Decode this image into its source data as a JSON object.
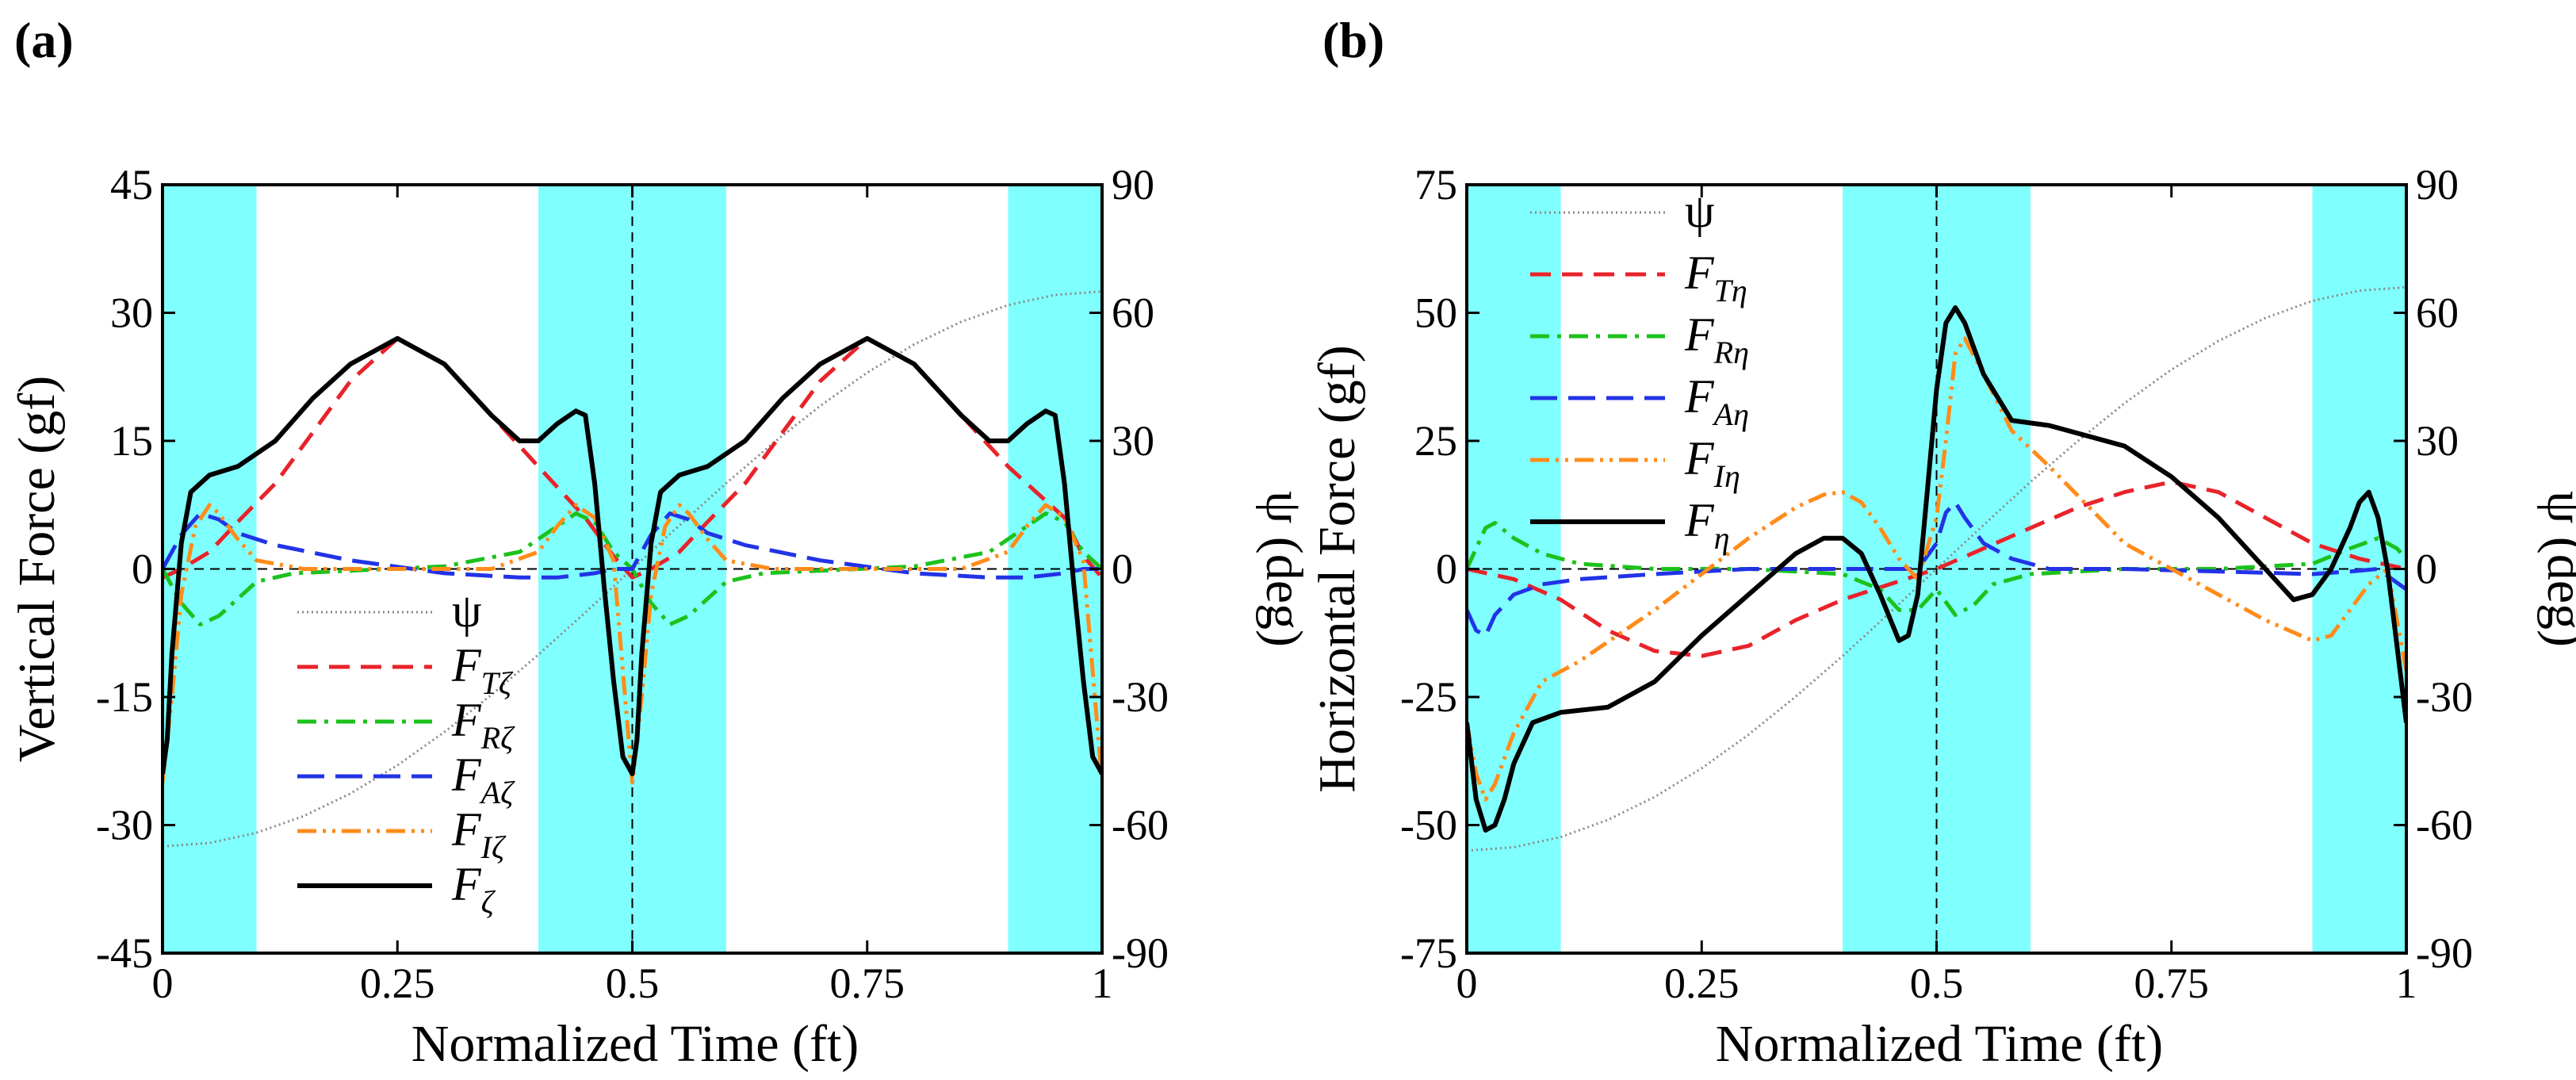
{
  "figure": {
    "panels": [
      "(a)",
      "(b)"
    ]
  },
  "chart_data": [
    {
      "type": "line",
      "panel": "(a)",
      "xlabel": "Normalized Time (ft)",
      "ylabel": "Vertical Force (gf)",
      "y2label": "ψ (deg)",
      "xlim": [
        0,
        1
      ],
      "ylim": [
        -45,
        45
      ],
      "y2lim": [
        -90,
        90
      ],
      "xticks": [
        0,
        0.25,
        0.5,
        0.75,
        1
      ],
      "xtick_labels": [
        "0",
        "0.25",
        "0.5",
        "0.75",
        "1"
      ],
      "yticks": [
        -45,
        -30,
        -15,
        0,
        15,
        30,
        45
      ],
      "ytick_labels": [
        "-45",
        "-30",
        "-15",
        "0",
        "15",
        "30",
        "45"
      ],
      "y2ticks": [
        -90,
        -60,
        -30,
        0,
        30,
        60,
        90
      ],
      "y2tick_labels": [
        "-90",
        "-60",
        "-30",
        "0",
        "30",
        "60",
        "90"
      ],
      "shaded_x_ranges": [
        [
          0,
          0.1
        ],
        [
          0.4,
          0.6
        ],
        [
          0.9,
          1.0
        ]
      ],
      "shade_color": "#80FFFF",
      "legend_position": "lower-center",
      "legend_items": [
        {
          "sym": "ψ",
          "sub": ""
        },
        {
          "sym": "F",
          "sub": "Tζ"
        },
        {
          "sym": "F",
          "sub": "Rζ"
        },
        {
          "sym": "F",
          "sub": "Aζ"
        },
        {
          "sym": "F",
          "sub": "Iζ"
        },
        {
          "sym": "F",
          "sub": "ζ"
        }
      ],
      "series": [
        {
          "name": "ψ",
          "axis": "right",
          "color": "#888888",
          "dash": "2,4",
          "width": 3,
          "x": [
            0,
            0.05,
            0.1,
            0.15,
            0.2,
            0.25,
            0.3,
            0.35,
            0.4,
            0.45,
            0.5,
            0.55,
            0.6,
            0.65,
            0.7,
            0.75,
            0.8,
            0.85,
            0.9,
            0.95,
            1
          ],
          "y": [
            -65,
            -64.2,
            -61.8,
            -57.9,
            -52.6,
            -46,
            -38.2,
            -29.5,
            -20.1,
            -10.2,
            0,
            10.2,
            20.1,
            29.5,
            38.2,
            46,
            52.6,
            57.9,
            61.8,
            64.2,
            65
          ]
        },
        {
          "name": "F_Tζ",
          "axis": "left",
          "color": "#E8232A",
          "dash": "26,14",
          "width": 5,
          "x": [
            0,
            0.02,
            0.05,
            0.08,
            0.12,
            0.16,
            0.2,
            0.25,
            0.3,
            0.35,
            0.4,
            0.45,
            0.48,
            0.5,
            0.52,
            0.55,
            0.58,
            0.62,
            0.66,
            0.7,
            0.75,
            0.8,
            0.85,
            0.9,
            0.93,
            0.96,
            0.98,
            1
          ],
          "y": [
            -1,
            0,
            2,
            5.5,
            10,
            16,
            22,
            27,
            24,
            18,
            12,
            6,
            1.5,
            -1,
            0,
            2,
            5.5,
            10,
            16,
            22,
            27,
            24,
            18,
            12,
            9,
            6,
            1.5,
            -1
          ]
        },
        {
          "name": "F_Rζ",
          "axis": "left",
          "color": "#1CC21C",
          "dash": "24,10,5,10",
          "width": 5,
          "x": [
            0,
            0.02,
            0.04,
            0.06,
            0.08,
            0.1,
            0.14,
            0.2,
            0.3,
            0.38,
            0.42,
            0.44,
            0.46,
            0.48,
            0.5,
            0.52,
            0.54,
            0.56,
            0.58,
            0.6,
            0.64,
            0.7,
            0.8,
            0.88,
            0.92,
            0.94,
            0.96,
            0.98,
            1
          ],
          "y": [
            0,
            -4,
            -6.5,
            -5.5,
            -3.5,
            -1.5,
            -0.5,
            -0.2,
            0.3,
            2,
            5,
            6.5,
            5.5,
            2,
            0,
            -4,
            -6.5,
            -5.5,
            -3.5,
            -1.5,
            -0.5,
            -0.2,
            0.3,
            2,
            5,
            6.5,
            5.5,
            2,
            0
          ]
        },
        {
          "name": "F_Aζ",
          "axis": "left",
          "color": "#2233E6",
          "dash": "34,14",
          "width": 5,
          "x": [
            0,
            0.02,
            0.04,
            0.06,
            0.08,
            0.12,
            0.2,
            0.3,
            0.38,
            0.42,
            0.46,
            0.48,
            0.5,
            0.52,
            0.54,
            0.56,
            0.58,
            0.62,
            0.7,
            0.8,
            0.88,
            0.92,
            0.96,
            0.98,
            1
          ],
          "y": [
            0,
            4,
            6.5,
            5.8,
            4.2,
            2.8,
            1,
            -0.5,
            -1,
            -1,
            -0.5,
            0,
            0,
            4,
            6.5,
            5.8,
            4.2,
            2.8,
            1,
            -0.5,
            -1,
            -1,
            -0.5,
            0,
            0
          ]
        },
        {
          "name": "F_Iζ",
          "axis": "left",
          "color": "#FF8C1A",
          "dash": "24,8,4,8,4,8",
          "width": 5,
          "x": [
            0,
            0.01,
            0.02,
            0.035,
            0.05,
            0.06,
            0.08,
            0.1,
            0.15,
            0.25,
            0.35,
            0.4,
            0.42,
            0.44,
            0.46,
            0.48,
            0.5,
            0.51,
            0.52,
            0.535,
            0.55,
            0.56,
            0.58,
            0.6,
            0.65,
            0.75,
            0.85,
            0.9,
            0.92,
            0.94,
            0.96,
            0.98,
            1
          ],
          "y": [
            -25,
            -15,
            -3,
            5,
            7.5,
            6.5,
            3.5,
            1,
            0,
            0,
            0,
            2,
            5,
            7.5,
            6,
            1,
            -25,
            -15,
            -3,
            5,
            7.5,
            6.5,
            3.5,
            1,
            0,
            0,
            0,
            2,
            5,
            7.5,
            6,
            1,
            -25
          ]
        },
        {
          "name": "F_ζ",
          "axis": "left",
          "color": "#000000",
          "dash": "",
          "width": 6,
          "x": [
            0,
            0.005,
            0.01,
            0.02,
            0.03,
            0.05,
            0.08,
            0.12,
            0.16,
            0.2,
            0.25,
            0.3,
            0.35,
            0.38,
            0.4,
            0.42,
            0.44,
            0.45,
            0.46,
            0.47,
            0.48,
            0.49,
            0.5,
            0.505,
            0.51,
            0.52,
            0.53,
            0.55,
            0.58,
            0.62,
            0.66,
            0.7,
            0.75,
            0.8,
            0.85,
            0.88,
            0.9,
            0.92,
            0.94,
            0.95,
            0.96,
            0.97,
            0.98,
            0.99,
            1
          ],
          "y": [
            -24,
            -20,
            -10,
            3,
            9,
            11,
            12,
            15,
            20,
            24,
            27,
            24,
            18,
            15,
            15,
            17,
            18.5,
            18,
            10,
            -2,
            -13,
            -22,
            -24,
            -20,
            -10,
            3,
            9,
            11,
            12,
            15,
            20,
            24,
            27,
            24,
            18,
            15,
            15,
            17,
            18.5,
            18,
            10,
            -2,
            -13,
            -22,
            -24
          ]
        }
      ]
    },
    {
      "type": "line",
      "panel": "(b)",
      "xlabel": "Normalized Time (ft)",
      "ylabel": "Horizontal Force (gf)",
      "y2label": "ψ (deg)",
      "xlim": [
        0,
        1
      ],
      "ylim": [
        -75,
        75
      ],
      "y2lim": [
        -90,
        90
      ],
      "xticks": [
        0,
        0.25,
        0.5,
        0.75,
        1
      ],
      "xtick_labels": [
        "0",
        "0.25",
        "0.5",
        "0.75",
        "1"
      ],
      "yticks": [
        -75,
        -50,
        -25,
        0,
        25,
        50,
        75
      ],
      "ytick_labels": [
        "-75",
        "-50",
        "-25",
        "0",
        "25",
        "50",
        "75"
      ],
      "y2ticks": [
        -90,
        -60,
        -30,
        0,
        30,
        60,
        90
      ],
      "y2tick_labels": [
        "-90",
        "-60",
        "-30",
        "0",
        "30",
        "60",
        "90"
      ],
      "shaded_x_ranges": [
        [
          0,
          0.1
        ],
        [
          0.4,
          0.6
        ],
        [
          0.9,
          1.0
        ]
      ],
      "shade_color": "#80FFFF",
      "legend_position": "upper-left",
      "legend_items": [
        {
          "sym": "ψ",
          "sub": ""
        },
        {
          "sym": "F",
          "sub": "Tη"
        },
        {
          "sym": "F",
          "sub": "Rη"
        },
        {
          "sym": "F",
          "sub": "Aη"
        },
        {
          "sym": "F",
          "sub": "Iη"
        },
        {
          "sym": "F",
          "sub": "η"
        }
      ],
      "series": [
        {
          "name": "ψ",
          "axis": "right",
          "color": "#888888",
          "dash": "2,4",
          "width": 3,
          "x": [
            0,
            0.05,
            0.1,
            0.15,
            0.2,
            0.25,
            0.3,
            0.35,
            0.4,
            0.45,
            0.5,
            0.55,
            0.6,
            0.65,
            0.7,
            0.75,
            0.8,
            0.85,
            0.9,
            0.95,
            1
          ],
          "y": [
            -66,
            -65.2,
            -62.8,
            -58.8,
            -53.4,
            -46.7,
            -38.8,
            -29.9,
            -20.4,
            -10.3,
            0,
            10.3,
            20.4,
            29.9,
            38.8,
            46.7,
            53.4,
            58.8,
            62.8,
            65.2,
            66
          ]
        },
        {
          "name": "F_Tη",
          "axis": "left",
          "color": "#E8232A",
          "dash": "26,14",
          "width": 5,
          "x": [
            0,
            0.05,
            0.1,
            0.15,
            0.2,
            0.25,
            0.3,
            0.35,
            0.4,
            0.45,
            0.5,
            0.55,
            0.6,
            0.65,
            0.7,
            0.75,
            0.8,
            0.85,
            0.9,
            0.95,
            1
          ],
          "y": [
            0,
            -2,
            -6,
            -12,
            -16,
            -17,
            -15,
            -10,
            -6,
            -3,
            0,
            4,
            8,
            12,
            15,
            17,
            15,
            10,
            5,
            2,
            0
          ]
        },
        {
          "name": "F_Rη",
          "axis": "left",
          "color": "#1CC21C",
          "dash": "24,10,5,10",
          "width": 5,
          "x": [
            0,
            0.01,
            0.02,
            0.03,
            0.05,
            0.08,
            0.12,
            0.2,
            0.3,
            0.4,
            0.44,
            0.46,
            0.48,
            0.5,
            0.52,
            0.54,
            0.56,
            0.6,
            0.7,
            0.8,
            0.9,
            0.94,
            0.97,
            0.99,
            1
          ],
          "y": [
            0,
            4,
            8,
            9,
            6,
            3,
            1,
            0,
            0,
            -1,
            -4,
            -8,
            -8,
            -4,
            -9,
            -7,
            -3,
            -1,
            0,
            0,
            1,
            4,
            6,
            4,
            2
          ]
        },
        {
          "name": "F_Aη",
          "axis": "left",
          "color": "#2233E6",
          "dash": "34,14",
          "width": 5,
          "x": [
            0,
            0.01,
            0.02,
            0.03,
            0.05,
            0.08,
            0.12,
            0.2,
            0.3,
            0.4,
            0.46,
            0.48,
            0.5,
            0.51,
            0.52,
            0.53,
            0.55,
            0.58,
            0.62,
            0.7,
            0.8,
            0.9,
            0.94,
            0.97,
            1
          ],
          "y": [
            -8,
            -12,
            -13,
            -9,
            -5,
            -3,
            -2,
            -1,
            0,
            0,
            0,
            0,
            5,
            11,
            13,
            10,
            5,
            2,
            0,
            0,
            -0.5,
            -1,
            -0.5,
            0,
            -4
          ]
        },
        {
          "name": "F_Iη",
          "axis": "left",
          "color": "#FF8C1A",
          "dash": "24,8,4,8,4,8",
          "width": 5,
          "x": [
            0,
            0.01,
            0.02,
            0.03,
            0.05,
            0.08,
            0.12,
            0.2,
            0.3,
            0.35,
            0.38,
            0.4,
            0.42,
            0.44,
            0.46,
            0.48,
            0.5,
            0.51,
            0.52,
            0.53,
            0.55,
            0.58,
            0.62,
            0.7,
            0.8,
            0.85,
            0.9,
            0.92,
            0.94,
            0.96,
            0.98,
            1
          ],
          "y": [
            -30,
            -40,
            -45,
            -42,
            -32,
            -22,
            -18,
            -8,
            6,
            12,
            14.5,
            15,
            13,
            8,
            2,
            -2,
            10,
            25,
            42,
            45,
            38,
            27,
            20,
            5,
            -5,
            -10,
            -14,
            -13,
            -8,
            -3,
            0,
            -20
          ]
        },
        {
          "name": "F_η",
          "axis": "left",
          "color": "#000000",
          "dash": "",
          "width": 6,
          "x": [
            0,
            0.01,
            0.02,
            0.03,
            0.04,
            0.05,
            0.07,
            0.1,
            0.15,
            0.2,
            0.25,
            0.3,
            0.35,
            0.38,
            0.4,
            0.42,
            0.44,
            0.46,
            0.47,
            0.48,
            0.49,
            0.5,
            0.51,
            0.52,
            0.53,
            0.55,
            0.58,
            0.62,
            0.7,
            0.75,
            0.8,
            0.85,
            0.88,
            0.9,
            0.92,
            0.94,
            0.95,
            0.96,
            0.97,
            0.98,
            0.99,
            1
          ],
          "y": [
            -30,
            -45,
            -51,
            -50,
            -45,
            -38,
            -30,
            -28,
            -27,
            -22,
            -13,
            -5,
            3,
            6,
            6,
            3,
            -5,
            -14,
            -13,
            -5,
            15,
            35,
            48,
            51,
            48,
            38,
            29,
            28,
            24,
            18,
            10,
            0,
            -6,
            -5,
            0,
            8,
            13,
            15,
            10,
            0,
            -15,
            -30
          ]
        }
      ]
    }
  ]
}
